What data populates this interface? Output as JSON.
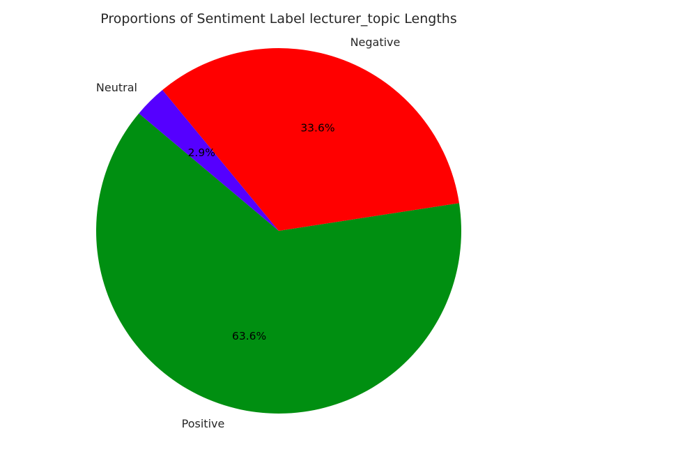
{
  "chart_data": {
    "type": "pie",
    "title": "Proportions of Sentiment Label lecturer_topic Lengths",
    "slices": [
      {
        "label": "Positive",
        "value": 63.6,
        "percent_label": "63.6%",
        "color": "#008f11"
      },
      {
        "label": "Negative",
        "value": 33.6,
        "percent_label": "33.6%",
        "color": "#ff0000"
      },
      {
        "label": "Neutral",
        "value": 2.9,
        "percent_label": "2.9%",
        "color": "#5500ff"
      }
    ],
    "start_angle_deg": 140,
    "direction": "counterclockwise",
    "legend": "none"
  }
}
